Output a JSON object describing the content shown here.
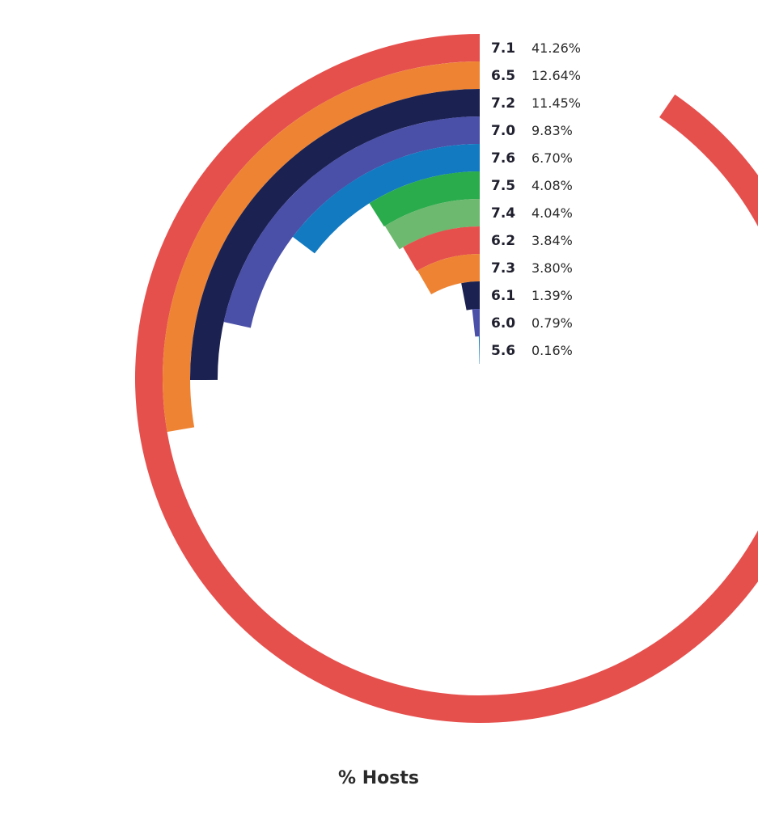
{
  "chart_data": {
    "type": "radial-bar",
    "title": "",
    "xlabel": "% Hosts",
    "series": [
      {
        "name": "7.1",
        "value_label": "41.26%",
        "value": 41.26,
        "color": "#e5504d"
      },
      {
        "name": "6.5",
        "value_label": "12.64%",
        "value": 12.64,
        "color": "#ee8433"
      },
      {
        "name": "7.2",
        "value_label": "11.45%",
        "value": 11.45,
        "color": "#1b2150"
      },
      {
        "name": "7.0",
        "value_label": "9.83%",
        "value": 9.83,
        "color": "#4a4fa8"
      },
      {
        "name": "7.6",
        "value_label": "6.70%",
        "value": 6.7,
        "color": "#127ac1"
      },
      {
        "name": "7.5",
        "value_label": "4.08%",
        "value": 4.08,
        "color": "#2aac4c"
      },
      {
        "name": "7.4",
        "value_label": "4.04%",
        "value": 4.04,
        "color": "#6cb96f"
      },
      {
        "name": "6.2",
        "value_label": "3.84%",
        "value": 3.84,
        "color": "#e5504d"
      },
      {
        "name": "7.3",
        "value_label": "3.80%",
        "value": 3.8,
        "color": "#ee8433"
      },
      {
        "name": "6.1",
        "value_label": "1.39%",
        "value": 1.39,
        "color": "#1b2150"
      },
      {
        "name": "6.0",
        "value_label": "0.79%",
        "value": 0.79,
        "color": "#4a4fa8"
      },
      {
        "name": "5.6",
        "value_label": "0.16%",
        "value": 0.16,
        "color": "#127ac1"
      }
    ]
  }
}
